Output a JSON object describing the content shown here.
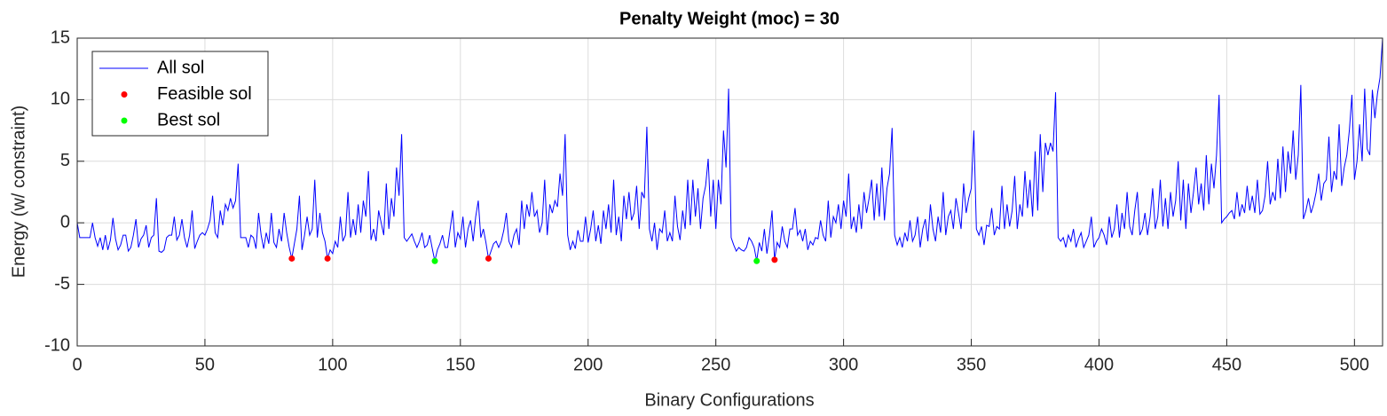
{
  "chart_data": {
    "type": "line",
    "title": "Penalty Weight (moc) = 30",
    "x_label": "Binary Configurations",
    "y_label": "Energy (w/ constraint)",
    "xlim": [
      0,
      511
    ],
    "ylim": [
      -10,
      15
    ],
    "xticks": [
      0,
      50,
      100,
      150,
      200,
      250,
      300,
      350,
      400,
      450,
      500
    ],
    "yticks": [
      -10,
      -5,
      0,
      5,
      10,
      15
    ],
    "grid": true,
    "legend": "upper left",
    "series": [
      {
        "name": "All sol",
        "color": "#0000ff",
        "values": [
          0,
          -1.2,
          -1.2,
          -1.2,
          -1.2,
          -1.2,
          0,
          -1.2,
          -1.9,
          -1.2,
          -2.2,
          -1.0,
          -2.2,
          -1.4,
          0.4,
          -1.3,
          -2.2,
          -1.8,
          -1.0,
          -1.0,
          -2.3,
          -2.0,
          -1.0,
          0.3,
          -2.0,
          -1.3,
          -1.0,
          -0.2,
          -2.0,
          -1.2,
          -1.0,
          2.0,
          -2.3,
          -2.4,
          -2.2,
          -1.2,
          -1.0,
          -1.0,
          0.5,
          -1.4,
          -1.0,
          0.3,
          -1.2,
          -2.0,
          -1.0,
          1.0,
          -2.1,
          -1.5,
          -1.0,
          -0.8,
          -1.0,
          -0.5,
          0.2,
          2.2,
          -0.8,
          -1.2,
          1.0,
          -0.2,
          1.5,
          1.0,
          2.0,
          1.2,
          1.8,
          4.8,
          -1.2,
          -1.2,
          -1.2,
          -2.0,
          -1.0,
          -1.2,
          -2.1,
          0.8,
          -1.0,
          -2.1,
          -0.8,
          -1.7,
          0.8,
          -1.6,
          -2.0,
          -0.5,
          -1.5,
          0.8,
          -0.8,
          -2.0,
          -2.9,
          -1.7,
          -0.5,
          2.2,
          -2.2,
          -1.0,
          0.5,
          -1.0,
          -0.5,
          3.5,
          -1.2,
          0.8,
          -0.8,
          -1.5,
          -2.9,
          -2.2,
          -2.5,
          -1.5,
          -2.0,
          0.5,
          -1.5,
          -1.0,
          2.5,
          -1.2,
          0.3,
          -1.0,
          1.5,
          -0.8,
          1.8,
          0.5,
          4.2,
          -1.4,
          -0.5,
          -1.5,
          1.0,
          0,
          -1.0,
          3.2,
          -0.5,
          2.0,
          0.5,
          4.5,
          2.2,
          7.2,
          -1.2,
          -1.5,
          -1.2,
          -0.9,
          -1.5,
          -2.0,
          -1.5,
          -0.8,
          -2.0,
          -1.8,
          -1.0,
          -2.1,
          -3.1,
          -2.2,
          -1.7,
          -1.0,
          -2.0,
          -2.0,
          -0.5,
          1.0,
          -2.0,
          -0.8,
          -1.3,
          0.5,
          -2.0,
          -0.5,
          0.2,
          -1.5,
          0.5,
          1.8,
          -1.2,
          -0.5,
          -1.6,
          -2.9,
          -2.3,
          -1.7,
          -1.5,
          -2.0,
          -1.5,
          -0.6,
          0.8,
          -1.5,
          -2.0,
          -1.0,
          -0.5,
          -1.8,
          1.8,
          -0.5,
          1.5,
          0.5,
          2.5,
          0.5,
          1.0,
          -0.8,
          0,
          3.5,
          -1.0,
          1.5,
          0.8,
          1.8,
          1.3,
          4.0,
          2.2,
          7.2,
          -1.0,
          -2.2,
          -1.5,
          -2.1,
          -0.6,
          -1.5,
          -1.5,
          0.5,
          -1.6,
          -0.5,
          1.0,
          -1.5,
          -0.2,
          -1.7,
          1.0,
          -0.5,
          1.5,
          -0.8,
          3.5,
          -1.0,
          0.5,
          -1.5,
          2.2,
          0.3,
          2.5,
          0.2,
          0.8,
          3.0,
          -0.5,
          2.5,
          2.0,
          7.8,
          -0.5,
          -1.5,
          0,
          -2.2,
          -0.5,
          -0.8,
          1.0,
          -1.5,
          -0.8,
          -1.5,
          2.2,
          -0.3,
          -1.4,
          1.0,
          -0.5,
          3.5,
          -0.2,
          3.5,
          0.5,
          2.8,
          -0.5,
          2.0,
          3.0,
          5.2,
          0.5,
          3.5,
          -0.5,
          3.5,
          1.5,
          7.5,
          4.5,
          10.9,
          -1.2,
          -1.8,
          -2.3,
          -2.0,
          -2.2,
          -2.3,
          -2.0,
          -1.2,
          -1.5,
          -2.0,
          -3.1,
          -1.6,
          -2.3,
          -0.5,
          -2.5,
          -1.0,
          1.0,
          -3.0,
          -1.6,
          -2.0,
          -0.3,
          -1.5,
          -2.0,
          -0.5,
          -0.5,
          1.2,
          -1.0,
          -0.6,
          -1.5,
          -0.5,
          -2.2,
          -1.5,
          -1.8,
          -1.2,
          -1.3,
          0.2,
          -1.0,
          -1.5,
          1.8,
          -1.2,
          0.5,
          0,
          1.5,
          -0.5,
          1.8,
          0.5,
          4.0,
          -0.5,
          0.5,
          -0.8,
          1.5,
          -0.5,
          2.5,
          0.8,
          2.0,
          3.5,
          0.2,
          3.2,
          0.5,
          4.5,
          0.2,
          2.8,
          4.0,
          7.7,
          -1.0,
          -1.8,
          -1.2,
          -2.0,
          -0.8,
          -1.5,
          0.2,
          -1.5,
          -1.0,
          0.5,
          -2.0,
          -0.5,
          0.3,
          -1.5,
          1.5,
          -0.5,
          -1.5,
          0.5,
          -0.8,
          2.5,
          -1.0,
          0.5,
          1.0,
          -0.5,
          2.0,
          0.8,
          -0.5,
          3.2,
          0.8,
          2.0,
          2.8,
          7.5,
          -0.5,
          -1.0,
          -0.3,
          -1.8,
          -0.2,
          -0.3,
          1.2,
          -1.0,
          -0.3,
          -0.5,
          3.0,
          -0.5,
          1.5,
          -0.3,
          1.0,
          3.8,
          -0.5,
          1.5,
          0.5,
          4.2,
          1.2,
          3.5,
          0.5,
          5.8,
          1.0,
          7.2,
          2.5,
          6.5,
          5.5,
          6.5,
          5.8,
          10.6,
          -1.2,
          -1.5,
          -1.2,
          -2.0,
          -1.0,
          -1.5,
          -0.5,
          -2.0,
          -1.3,
          -0.8,
          -2.0,
          -1.5,
          -1.0,
          0.5,
          -2.0,
          -1.5,
          -1.2,
          -0.5,
          -1.0,
          -1.8,
          0.5,
          -1.2,
          -0.5,
          1.5,
          -1.2,
          0.8,
          -0.5,
          2.5,
          -0.3,
          -1.0,
          1.0,
          2.5,
          -1.0,
          -0.5,
          0.8,
          -1.0,
          0.5,
          2.8,
          -0.5,
          0.5,
          3.5,
          -0.3,
          2.0,
          -0.5,
          2.5,
          0.5,
          1.8,
          5.0,
          0.2,
          3.5,
          -0.5,
          3.2,
          0.8,
          2.5,
          4.5,
          1.5,
          3.2,
          1.0,
          5.5,
          1.5,
          4.8,
          2.8,
          5.5,
          10.4,
          0,
          0.3,
          0.5,
          0.8,
          1.0,
          0.3,
          2.5,
          0.5,
          1.5,
          0.8,
          3.0,
          1.0,
          2.2,
          0.8,
          3.5,
          0.7,
          1.0,
          2.2,
          5.0,
          1.5,
          2.5,
          1.8,
          5.2,
          2.0,
          6.2,
          2.5,
          5.8,
          4.0,
          7.5,
          3.5,
          5.5,
          11.2,
          0.3,
          1.0,
          2.0,
          0.8,
          1.5,
          2.5,
          4.0,
          1.8,
          3.2,
          3.5,
          7.0,
          2.5,
          4.2,
          3.5,
          8.0,
          3.0,
          4.5,
          5.5,
          7.5,
          10.4,
          3.5,
          5.0,
          8.0,
          5.0,
          10.9,
          6.0,
          5.5,
          10.8,
          8.5,
          10.5,
          11.8,
          15.0
        ]
      },
      {
        "name": "Feasible sol",
        "color": "#ff0000",
        "marker": "dot",
        "x": [
          84,
          98,
          161,
          273
        ],
        "values": [
          -2.9,
          -2.9,
          -2.9,
          -3.0
        ]
      },
      {
        "name": "Best sol",
        "color": "#00ff00",
        "marker": "dot",
        "x": [
          140,
          266
        ],
        "values": [
          -3.1,
          -3.1
        ]
      }
    ]
  }
}
